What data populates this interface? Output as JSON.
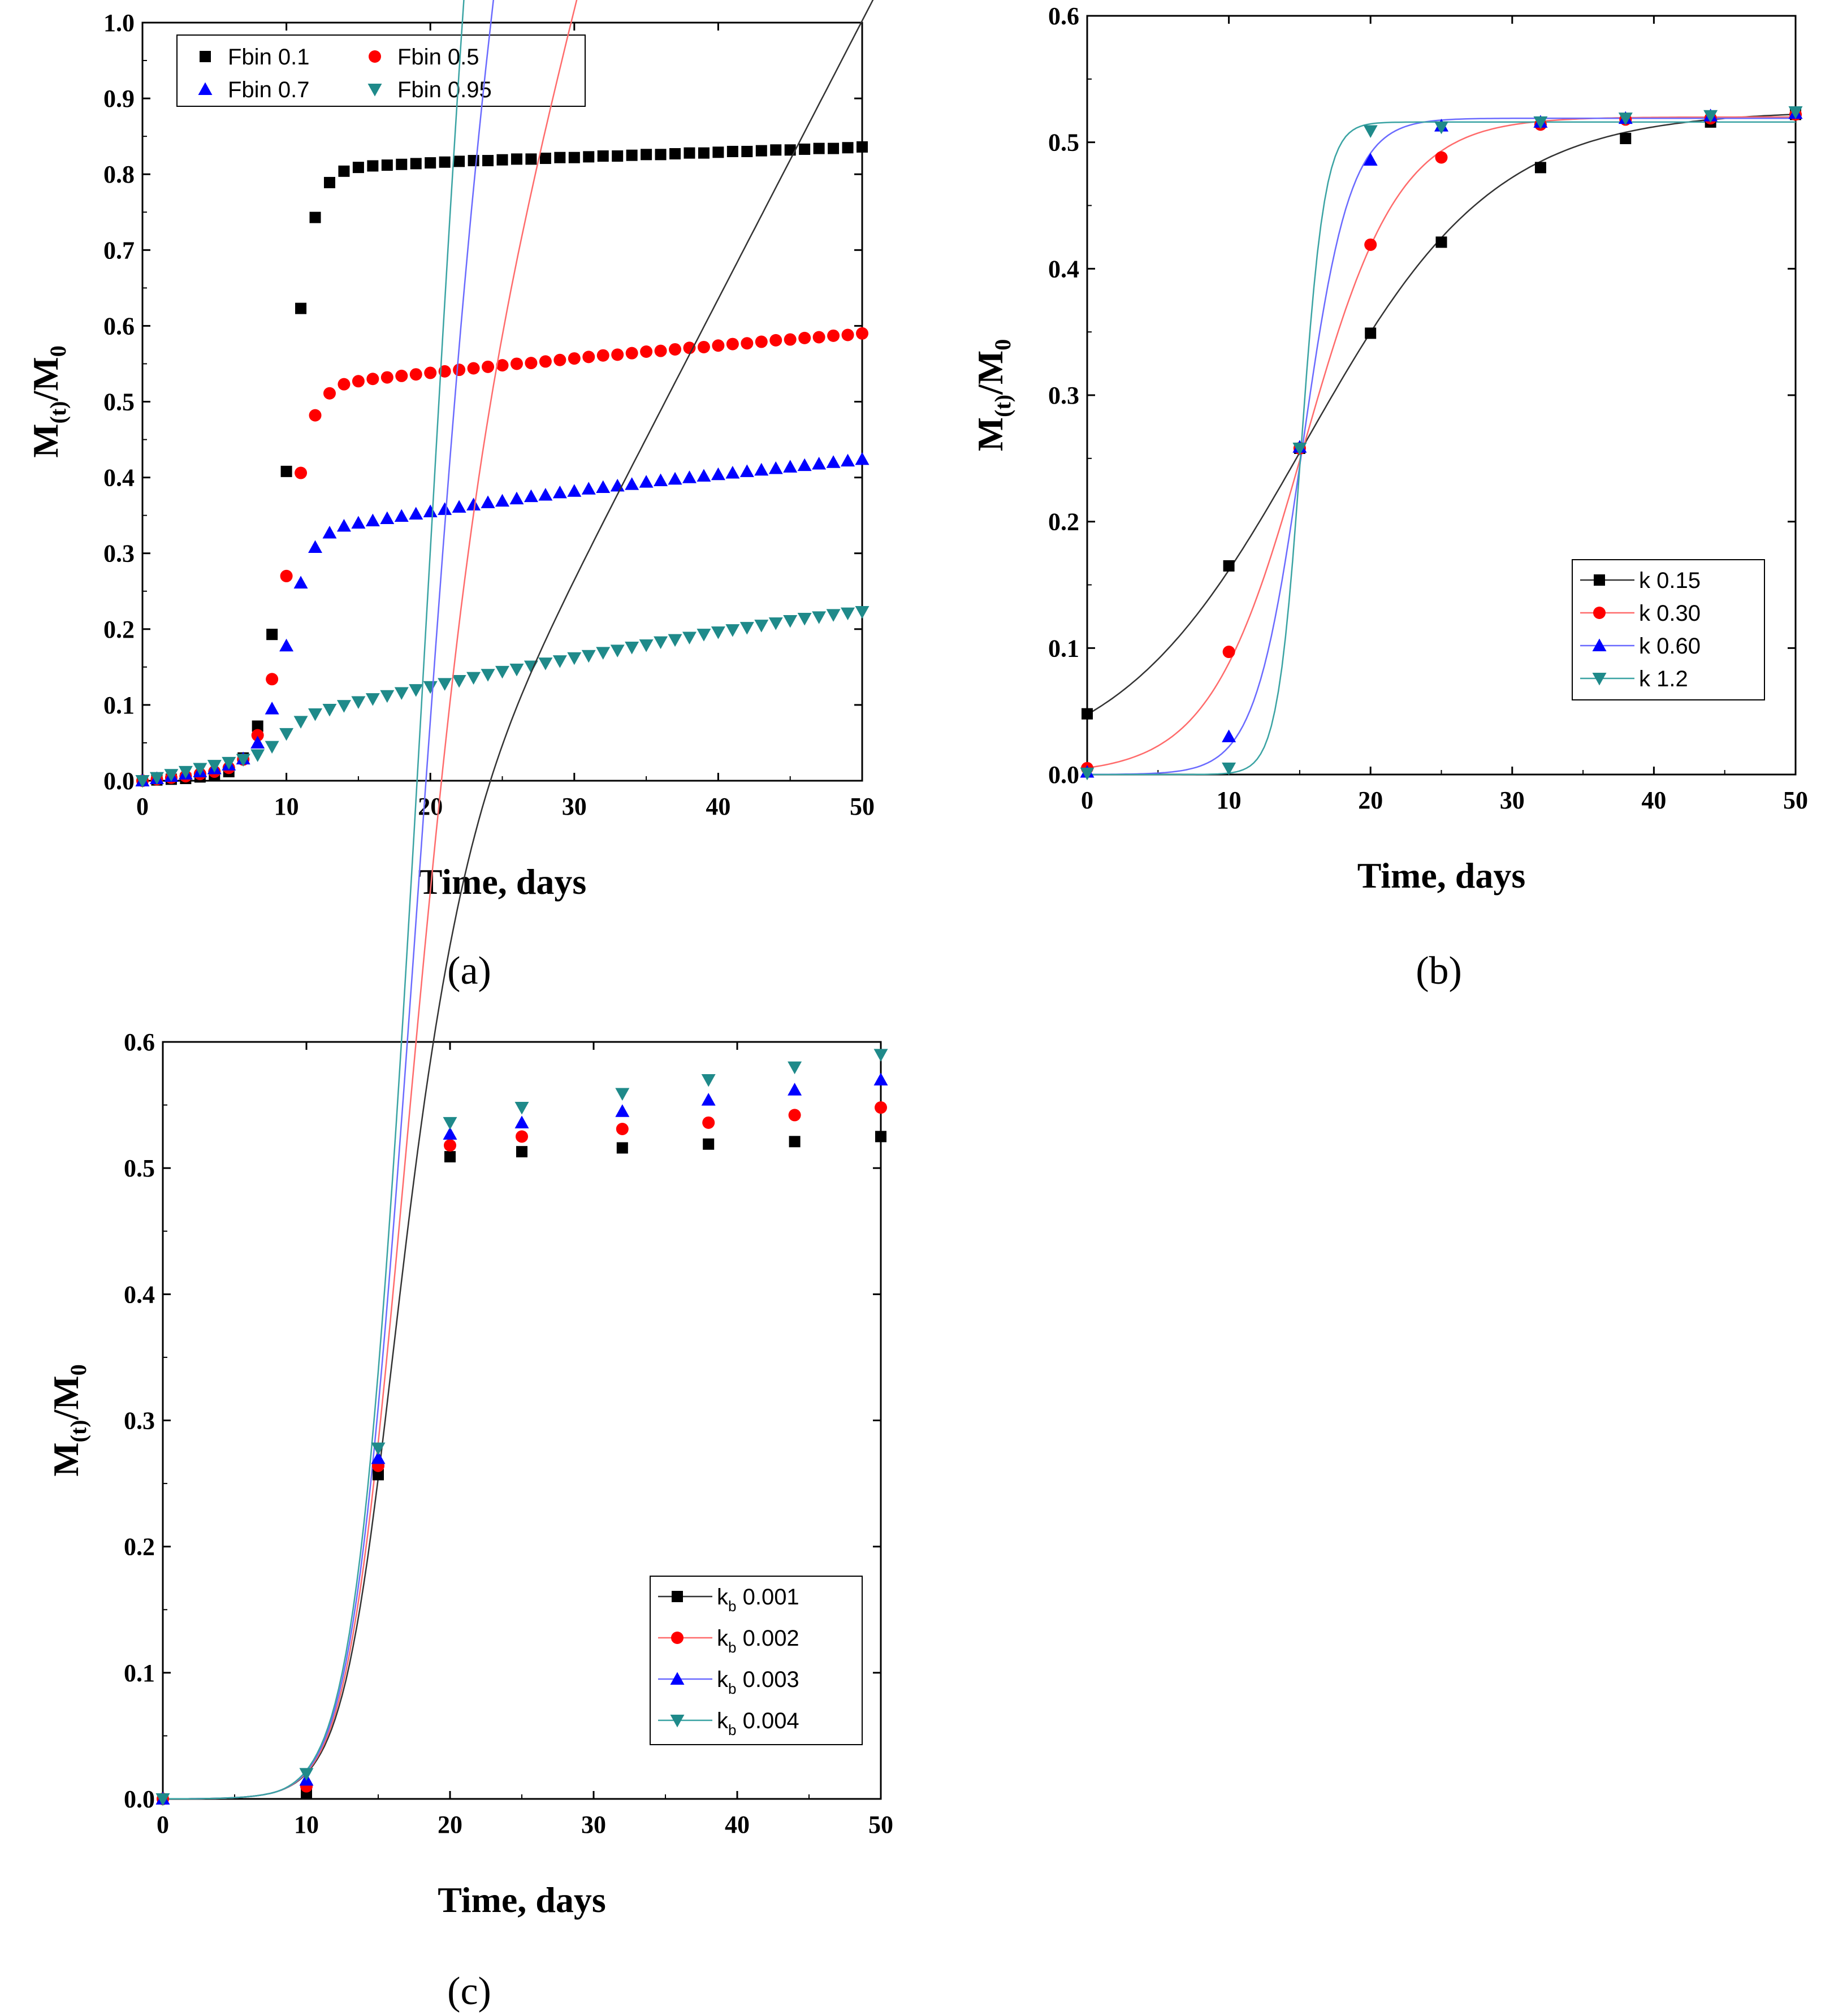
{
  "colors": {
    "black": "#000000",
    "red": "#ff0000",
    "blue": "#0000ff",
    "teal": "#1f8a8a",
    "red_line": "#ff6b6b",
    "blue_line": "#6a6aff",
    "teal_line": "#3aa3a3",
    "black_line": "#333333"
  },
  "chart_data": [
    {
      "id": "a",
      "type": "scatter",
      "panel_label": "(a)",
      "xlabel": "Time, days",
      "ylabel": "M(t)/M0",
      "xlim": [
        0,
        50
      ],
      "ylim": [
        0,
        1.0
      ],
      "xticks": [
        0,
        10,
        20,
        30,
        40,
        50
      ],
      "yticks": [
        0.0,
        0.1,
        0.2,
        0.3,
        0.4,
        0.5,
        0.6,
        0.7,
        0.8,
        0.9,
        1.0
      ],
      "legend_position": "top-left",
      "legend_columns": 2,
      "series": [
        {
          "name": "Fbin 0.1",
          "marker": "square",
          "color": "#000000",
          "x": [
            0,
            1,
            2,
            3,
            4,
            5,
            6,
            7,
            8,
            9,
            10,
            11,
            12,
            13,
            14,
            15,
            16,
            17,
            18,
            19,
            20,
            21,
            22,
            23,
            24,
            25,
            26,
            27,
            28,
            29,
            30,
            31,
            32,
            33,
            34,
            35,
            36,
            37,
            38,
            39,
            40,
            41,
            42,
            43,
            44,
            45,
            46,
            47,
            48,
            49,
            50
          ],
          "y": [
            0.0,
            0.001,
            0.002,
            0.003,
            0.005,
            0.007,
            0.012,
            0.03,
            0.072,
            0.193,
            0.408,
            0.623,
            0.743,
            0.789,
            0.804,
            0.809,
            0.811,
            0.812,
            0.813,
            0.814,
            0.815,
            0.816,
            0.817,
            0.818,
            0.818,
            0.819,
            0.82,
            0.82,
            0.821,
            0.822,
            0.822,
            0.823,
            0.824,
            0.824,
            0.825,
            0.826,
            0.826,
            0.827,
            0.828,
            0.828,
            0.829,
            0.83,
            0.83,
            0.831,
            0.832,
            0.832,
            0.833,
            0.834,
            0.834,
            0.835,
            0.836
          ]
        },
        {
          "name": "Fbin 0.5",
          "marker": "circle",
          "color": "#ff0000",
          "x": [
            0,
            1,
            2,
            3,
            4,
            5,
            6,
            7,
            8,
            9,
            10,
            11,
            12,
            13,
            14,
            15,
            16,
            17,
            18,
            19,
            20,
            21,
            22,
            23,
            24,
            25,
            26,
            27,
            28,
            29,
            30,
            31,
            32,
            33,
            34,
            35,
            36,
            37,
            38,
            39,
            40,
            41,
            42,
            43,
            44,
            45,
            46,
            47,
            48,
            49,
            50
          ],
          "y": [
            0.0,
            0.002,
            0.004,
            0.006,
            0.009,
            0.012,
            0.017,
            0.028,
            0.06,
            0.134,
            0.27,
            0.406,
            0.482,
            0.511,
            0.523,
            0.527,
            0.53,
            0.532,
            0.534,
            0.536,
            0.538,
            0.54,
            0.542,
            0.544,
            0.546,
            0.548,
            0.55,
            0.551,
            0.553,
            0.555,
            0.557,
            0.559,
            0.561,
            0.562,
            0.564,
            0.566,
            0.567,
            0.569,
            0.571,
            0.572,
            0.574,
            0.576,
            0.577,
            0.579,
            0.581,
            0.582,
            0.584,
            0.585,
            0.587,
            0.588,
            0.59
          ]
        },
        {
          "name": "Fbin 0.7",
          "marker": "triangle-up",
          "color": "#0000ff",
          "x": [
            0,
            1,
            2,
            3,
            4,
            5,
            6,
            7,
            8,
            9,
            10,
            11,
            12,
            13,
            14,
            15,
            16,
            17,
            18,
            19,
            20,
            21,
            22,
            23,
            24,
            25,
            26,
            27,
            28,
            29,
            30,
            31,
            32,
            33,
            34,
            35,
            36,
            37,
            38,
            39,
            40,
            41,
            42,
            43,
            44,
            45,
            46,
            47,
            48,
            49,
            50
          ],
          "y": [
            0.0,
            0.003,
            0.006,
            0.009,
            0.012,
            0.016,
            0.021,
            0.029,
            0.05,
            0.095,
            0.178,
            0.261,
            0.308,
            0.327,
            0.336,
            0.34,
            0.343,
            0.346,
            0.349,
            0.352,
            0.355,
            0.358,
            0.361,
            0.364,
            0.367,
            0.369,
            0.372,
            0.375,
            0.377,
            0.38,
            0.382,
            0.385,
            0.387,
            0.389,
            0.391,
            0.394,
            0.396,
            0.398,
            0.4,
            0.402,
            0.404,
            0.406,
            0.408,
            0.41,
            0.412,
            0.414,
            0.416,
            0.418,
            0.42,
            0.422,
            0.424
          ]
        },
        {
          "name": "Fbin 0.95",
          "marker": "triangle-down",
          "color": "#1f8a8a",
          "x": [
            0,
            1,
            2,
            3,
            4,
            5,
            6,
            7,
            8,
            9,
            10,
            11,
            12,
            13,
            14,
            15,
            16,
            17,
            18,
            19,
            20,
            21,
            22,
            23,
            24,
            25,
            26,
            27,
            28,
            29,
            30,
            31,
            32,
            33,
            34,
            35,
            36,
            37,
            38,
            39,
            40,
            41,
            42,
            43,
            44,
            45,
            46,
            47,
            48,
            49,
            50
          ],
          "y": [
            0.0,
            0.004,
            0.008,
            0.012,
            0.016,
            0.02,
            0.024,
            0.028,
            0.034,
            0.045,
            0.062,
            0.078,
            0.088,
            0.094,
            0.099,
            0.104,
            0.108,
            0.112,
            0.116,
            0.12,
            0.124,
            0.128,
            0.132,
            0.136,
            0.14,
            0.144,
            0.147,
            0.151,
            0.155,
            0.158,
            0.162,
            0.165,
            0.169,
            0.172,
            0.176,
            0.179,
            0.183,
            0.186,
            0.189,
            0.193,
            0.196,
            0.199,
            0.202,
            0.205,
            0.208,
            0.211,
            0.214,
            0.216,
            0.219,
            0.221,
            0.223
          ]
        }
      ]
    },
    {
      "id": "b",
      "type": "scatter+line",
      "panel_label": "(b)",
      "xlabel": "Time, days",
      "ylabel": "M(t)/M0",
      "xlim": [
        0,
        50
      ],
      "ylim": [
        0,
        0.6
      ],
      "xticks": [
        0,
        10,
        20,
        30,
        40,
        50
      ],
      "yticks": [
        0.0,
        0.1,
        0.2,
        0.3,
        0.4,
        0.5,
        0.6
      ],
      "legend_position": "bottom-right",
      "series": [
        {
          "name": "k 0.15",
          "marker": "square",
          "color": "#000000",
          "line_color": "#333333",
          "k": 0.15,
          "x0": 15.4,
          "top": 0.525,
          "x": [
            0,
            10,
            15,
            20,
            25,
            32,
            38,
            44,
            50
          ],
          "y": [
            0.048,
            0.165,
            0.258,
            0.349,
            0.421,
            0.48,
            0.503,
            0.516,
            0.522
          ]
        },
        {
          "name": "k 0.30",
          "marker": "circle",
          "color": "#ff0000",
          "line_color": "#ff6b6b",
          "k": 0.3,
          "x0": 15.3,
          "top": 0.52,
          "x": [
            0,
            10,
            15,
            20,
            25,
            32,
            38,
            44,
            50
          ],
          "y": [
            0.005,
            0.097,
            0.258,
            0.419,
            0.488,
            0.514,
            0.518,
            0.519,
            0.522
          ]
        },
        {
          "name": "k 0.60",
          "marker": "triangle-up",
          "color": "#0000ff",
          "line_color": "#6a6aff",
          "k": 0.6,
          "x0": 15.2,
          "top": 0.519,
          "x": [
            0,
            10,
            15,
            20,
            25,
            32,
            38,
            44,
            50
          ],
          "y": [
            0.002,
            0.03,
            0.259,
            0.486,
            0.513,
            0.516,
            0.519,
            0.521,
            0.523
          ]
        },
        {
          "name": "k 1.2",
          "marker": "triangle-down",
          "color": "#1f8a8a",
          "line_color": "#3aa3a3",
          "k": 1.2,
          "x0": 15.1,
          "top": 0.516,
          "x": [
            0,
            10,
            15,
            20,
            25,
            32,
            38,
            44,
            50
          ],
          "y": [
            0.001,
            0.005,
            0.258,
            0.509,
            0.512,
            0.516,
            0.519,
            0.521,
            0.524
          ]
        }
      ]
    },
    {
      "id": "c",
      "type": "scatter+line",
      "panel_label": "(c)",
      "xlabel": "Time, days",
      "ylabel": "M(t)/M0",
      "xlim": [
        0,
        50
      ],
      "ylim": [
        0,
        0.6
      ],
      "xticks": [
        0,
        10,
        20,
        30,
        40,
        50
      ],
      "yticks": [
        0.0,
        0.1,
        0.2,
        0.3,
        0.4,
        0.5,
        0.6
      ],
      "legend_position": "bottom-right",
      "series": [
        {
          "name": "k",
          "name_sub": "b",
          "name_value": "0.001",
          "marker": "square",
          "color": "#000000",
          "line_color": "#333333",
          "kb": 0.001,
          "x": [
            0,
            10,
            15,
            20,
            25,
            32,
            38,
            44,
            50
          ],
          "y": [
            0.0,
            0.005,
            0.257,
            0.509,
            0.513,
            0.516,
            0.519,
            0.521,
            0.525
          ]
        },
        {
          "name": "k",
          "name_sub": "b",
          "name_value": "0.002",
          "marker": "circle",
          "color": "#ff0000",
          "line_color": "#ff6b6b",
          "kb": 0.002,
          "x": [
            0,
            10,
            15,
            20,
            25,
            32,
            38,
            44,
            50
          ],
          "y": [
            0.0,
            0.01,
            0.264,
            0.518,
            0.525,
            0.531,
            0.536,
            0.542,
            0.548
          ]
        },
        {
          "name": "k",
          "name_sub": "b",
          "name_value": "0.003",
          "marker": "triangle-up",
          "color": "#0000ff",
          "line_color": "#6a6aff",
          "kb": 0.003,
          "x": [
            0,
            10,
            15,
            20,
            25,
            32,
            38,
            44,
            50
          ],
          "y": [
            0.0,
            0.015,
            0.27,
            0.527,
            0.536,
            0.545,
            0.554,
            0.562,
            0.57
          ]
        },
        {
          "name": "k",
          "name_sub": "b",
          "name_value": "0.004",
          "marker": "triangle-down",
          "color": "#1f8a8a",
          "line_color": "#3aa3a3",
          "kb": 0.004,
          "x": [
            0,
            10,
            15,
            20,
            25,
            32,
            38,
            44,
            50
          ],
          "y": [
            0.0,
            0.02,
            0.278,
            0.536,
            0.548,
            0.559,
            0.57,
            0.58,
            0.59
          ]
        }
      ]
    }
  ]
}
